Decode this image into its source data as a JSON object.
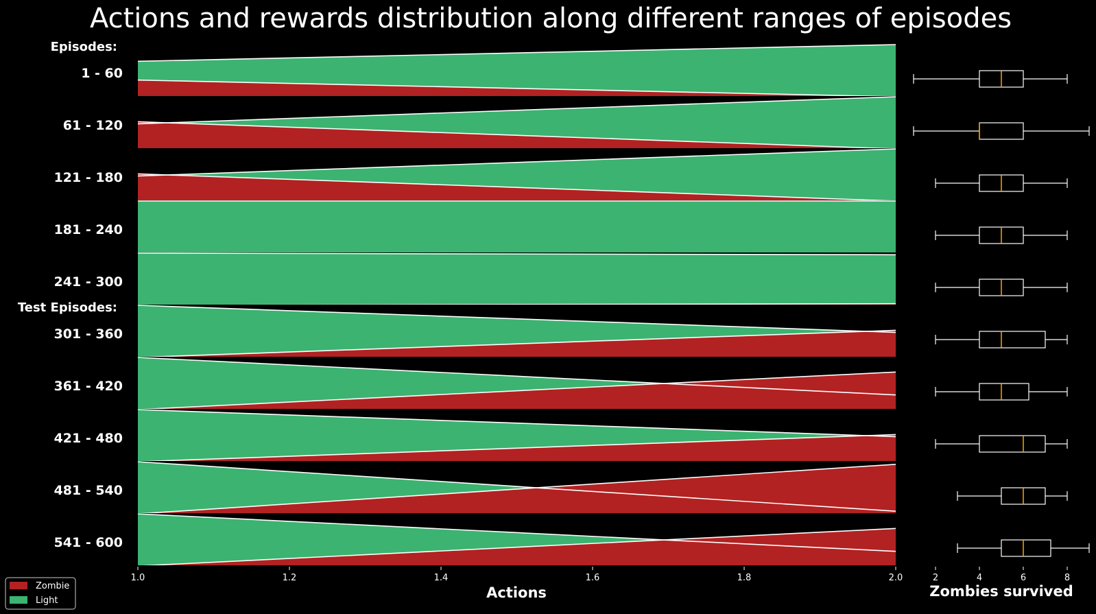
{
  "title": "Actions and rewards distribution along different ranges of episodes",
  "section_labels": {
    "train": "Episodes:",
    "test": "Test Episodes:"
  },
  "colors": {
    "zombie": "#b22222",
    "light": "#3cb371",
    "background": "#000000",
    "median": "#ffa500",
    "edge": "#ffffff"
  },
  "chart_data": [
    {
      "type": "area",
      "xlabel": "Actions",
      "ylabel": "",
      "xlim": [
        1.0,
        2.0
      ],
      "xticks": [
        "1.0",
        "1.2",
        "1.4",
        "1.6",
        "1.8",
        "2.0"
      ],
      "legend": {
        "placement": "bottom-left",
        "entries": [
          "Zombie",
          "Light"
        ]
      },
      "rows": [
        {
          "label": "1 - 60",
          "zombie_at_1": 0.32,
          "zombie_at_2": 0.0,
          "light_at_1": 0.68,
          "light_at_2": 1.0
        },
        {
          "label": "61 - 120",
          "zombie_at_1": 0.52,
          "zombie_at_2": 0.0,
          "light_at_1": 0.48,
          "light_at_2": 1.0
        },
        {
          "label": "121 - 180",
          "zombie_at_1": 0.52,
          "zombie_at_2": 0.0,
          "light_at_1": 0.48,
          "light_at_2": 1.0
        },
        {
          "label": "181 - 240",
          "zombie_at_1": 0.0,
          "zombie_at_2": 0.0,
          "light_at_1": 1.0,
          "light_at_2": 1.0
        },
        {
          "label": "241 - 300",
          "zombie_at_1": 0.0,
          "zombie_at_2": 0.03,
          "light_at_1": 1.0,
          "light_at_2": 0.97
        },
        {
          "label": "301 - 360",
          "zombie_at_1": 0.0,
          "zombie_at_2": 0.52,
          "light_at_1": 1.0,
          "light_at_2": 0.48
        },
        {
          "label": "361 - 420",
          "zombie_at_1": 0.0,
          "zombie_at_2": 0.72,
          "light_at_1": 1.0,
          "light_at_2": 0.28
        },
        {
          "label": "421 - 480",
          "zombie_at_1": 0.0,
          "zombie_at_2": 0.52,
          "light_at_1": 1.0,
          "light_at_2": 0.48
        },
        {
          "label": "481 - 540",
          "zombie_at_1": 0.0,
          "zombie_at_2": 0.95,
          "light_at_1": 1.0,
          "light_at_2": 0.05
        },
        {
          "label": "541 - 600",
          "zombie_at_1": 0.0,
          "zombie_at_2": 0.72,
          "light_at_1": 1.0,
          "light_at_2": 0.28
        }
      ]
    },
    {
      "type": "box",
      "xlabel": "Zombies survived",
      "xlim": [
        2,
        9
      ],
      "xticks": [
        2,
        4,
        6,
        8
      ],
      "boxes": [
        {
          "label": "1 - 60",
          "whislo": 1,
          "q1": 4,
          "med": 5,
          "q3": 6,
          "whishi": 8
        },
        {
          "label": "61 - 120",
          "whislo": 1,
          "q1": 4,
          "med": 4,
          "q3": 6,
          "whishi": 9
        },
        {
          "label": "121 - 180",
          "whislo": 2,
          "q1": 4,
          "med": 5,
          "q3": 6,
          "whishi": 8
        },
        {
          "label": "181 - 240",
          "whislo": 2,
          "q1": 4,
          "med": 5,
          "q3": 6,
          "whishi": 8
        },
        {
          "label": "241 - 300",
          "whislo": 2,
          "q1": 4,
          "med": 5,
          "q3": 6,
          "whishi": 8
        },
        {
          "label": "301 - 360",
          "whislo": 2,
          "q1": 4,
          "med": 5,
          "q3": 7,
          "whishi": 8
        },
        {
          "label": "361 - 420",
          "whislo": 2,
          "q1": 4,
          "med": 5,
          "q3": 6.25,
          "whishi": 8
        },
        {
          "label": "421 - 480",
          "whislo": 2,
          "q1": 4,
          "med": 6,
          "q3": 7,
          "whishi": 8
        },
        {
          "label": "481 - 540",
          "whislo": 3,
          "q1": 5,
          "med": 6,
          "q3": 7,
          "whishi": 8
        },
        {
          "label": "541 - 600",
          "whislo": 3,
          "q1": 5,
          "med": 6,
          "q3": 7.25,
          "whishi": 9
        }
      ]
    }
  ]
}
